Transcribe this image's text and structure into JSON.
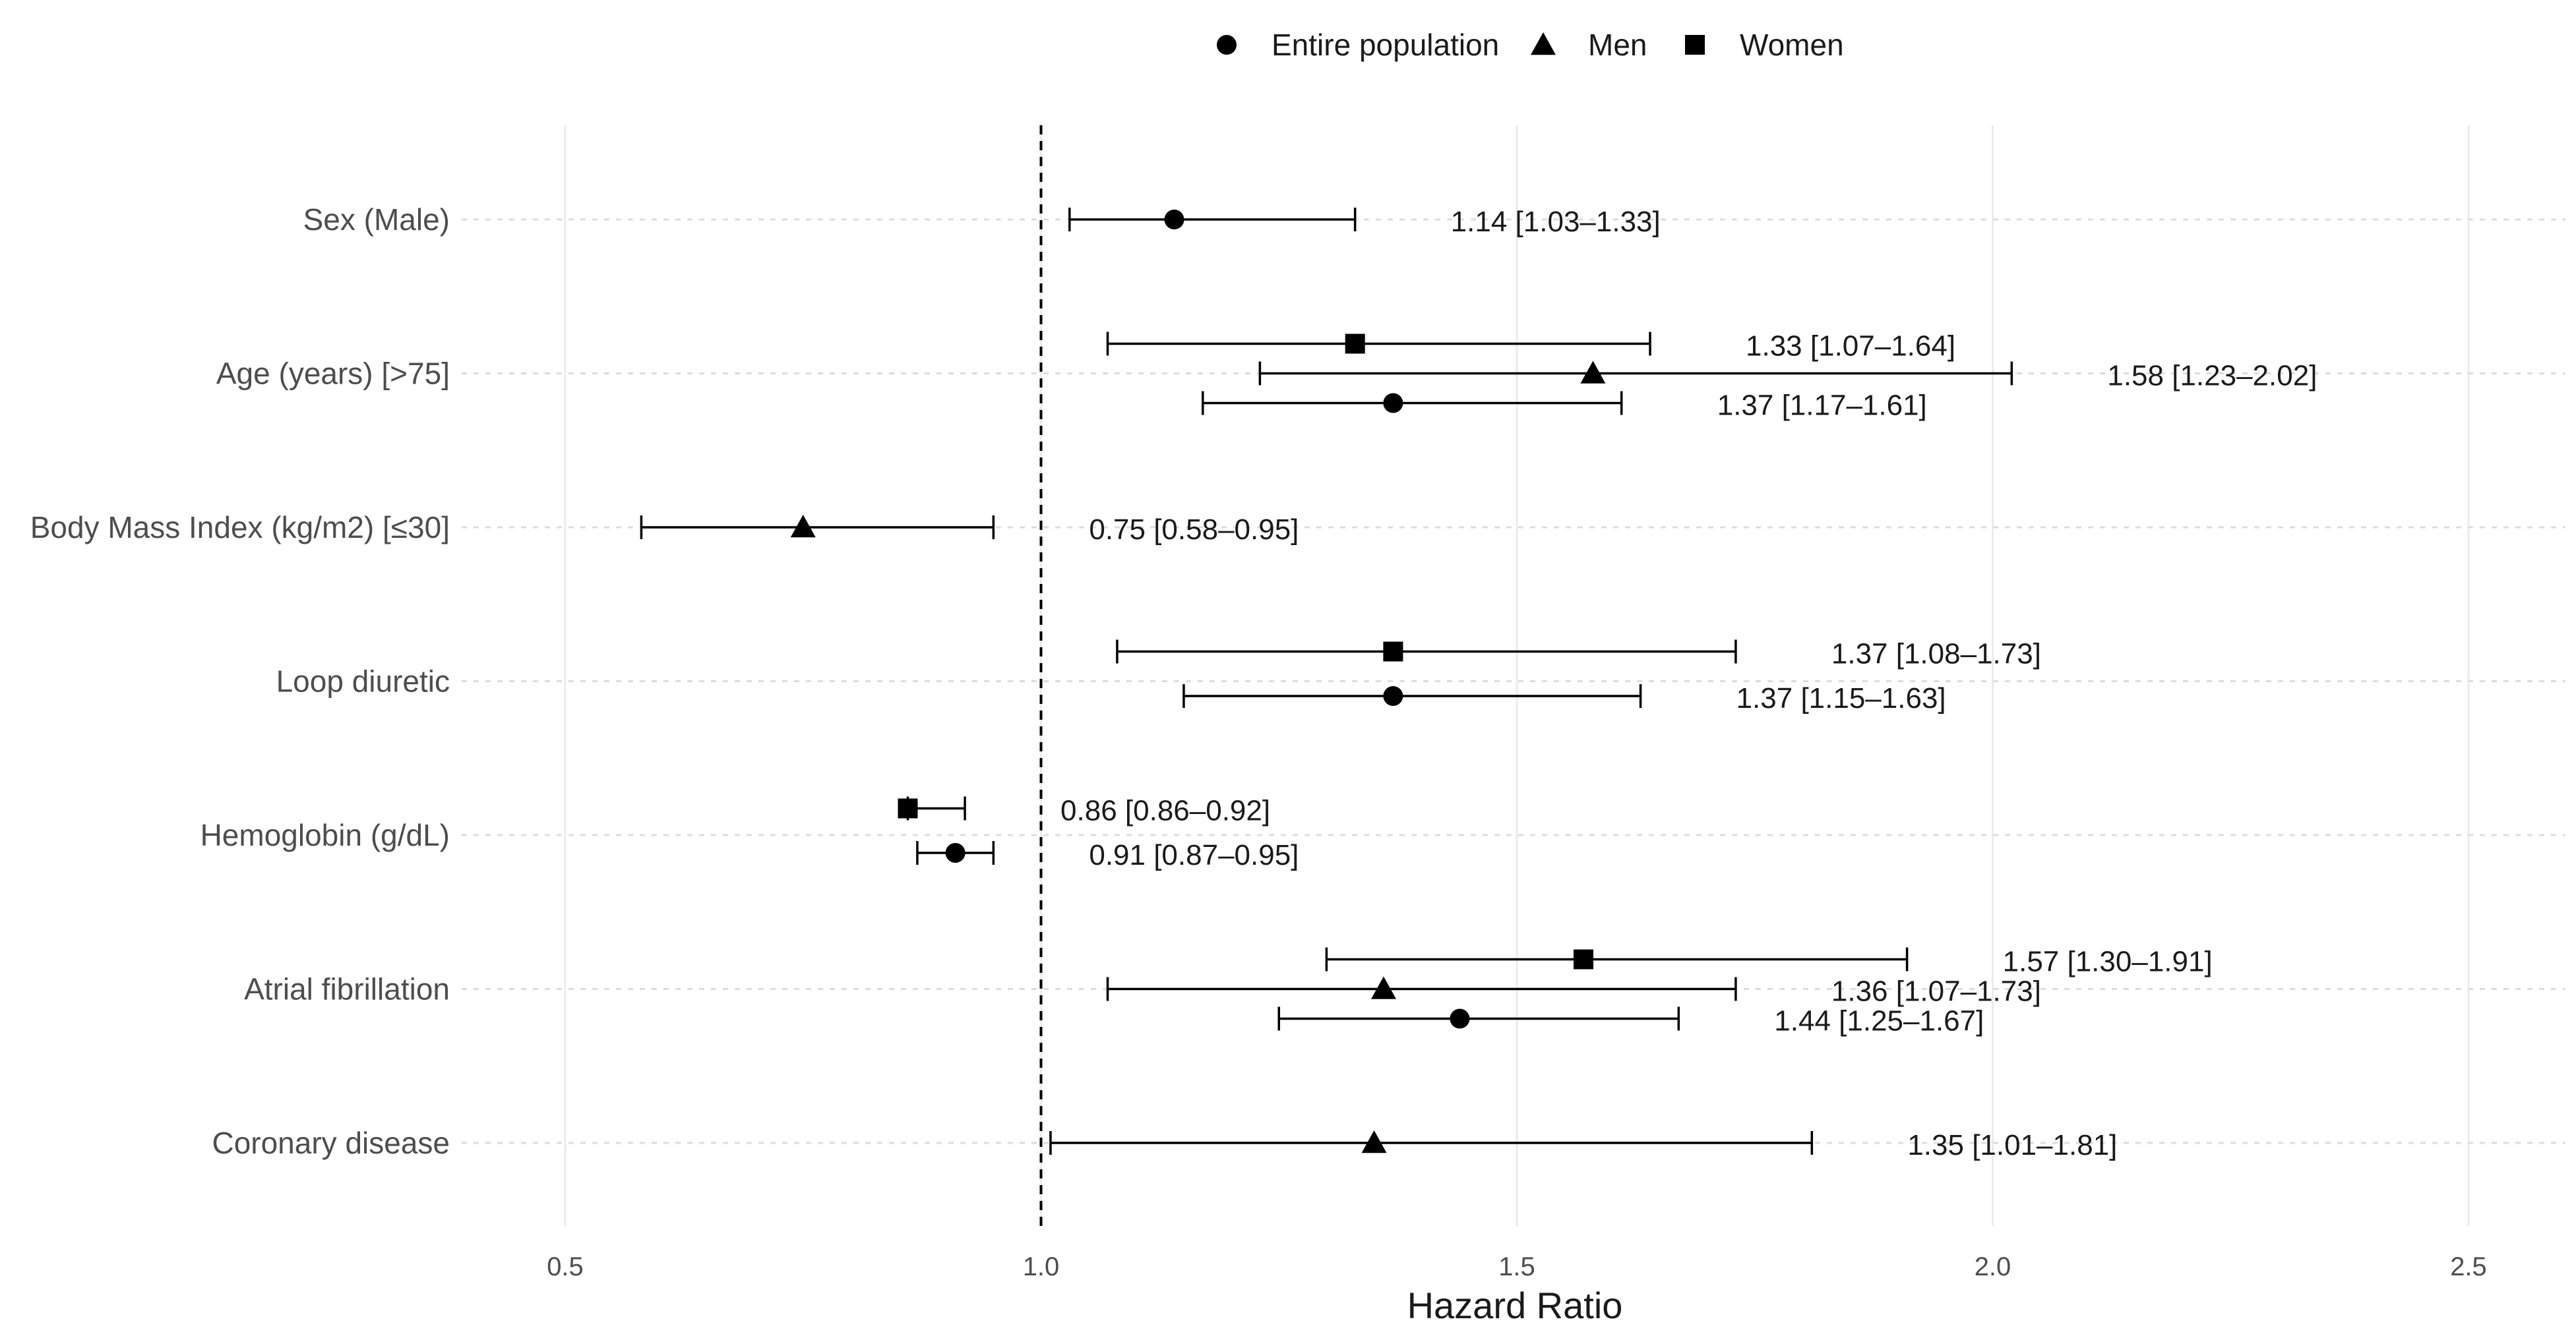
{
  "chart_data": {
    "type": "forest",
    "xlabel": "Hazard Ratio",
    "ylabel": "",
    "xlim": [
      0.3,
      2.6
    ],
    "x_ticks": [
      0.5,
      1.0,
      1.5,
      2.0,
      2.5
    ],
    "x_tick_labels": [
      "0.5",
      "1.0",
      "1.5",
      "2.0",
      "2.5"
    ],
    "reference_line": 1.0,
    "legend": {
      "position": "top",
      "items": [
        {
          "name": "Entire population",
          "shape": "circle"
        },
        {
          "name": "Men",
          "shape": "triangle"
        },
        {
          "name": "Women",
          "shape": "square"
        }
      ]
    },
    "categories": [
      "Sex (Male)",
      "Age (years) [>75]",
      "Body Mass Index (kg/m2) [≤30]",
      "Loop diuretic",
      "Hemoglobin (g/dL)",
      "Atrial fibrillation",
      "Coronary disease"
    ],
    "points": [
      {
        "category": "Sex (Male)",
        "series": "Entire population",
        "hr": 1.14,
        "lo": 1.03,
        "hi": 1.33,
        "offset": 0,
        "label": "1.14 [1.03–1.33]"
      },
      {
        "category": "Age (years) [>75]",
        "series": "Women",
        "hr": 1.33,
        "lo": 1.07,
        "hi": 1.64,
        "offset": -1,
        "label": "1.33 [1.07–1.64]"
      },
      {
        "category": "Age (years) [>75]",
        "series": "Men",
        "hr": 1.58,
        "lo": 1.23,
        "hi": 2.02,
        "offset": 0,
        "label": "1.58 [1.23–2.02]"
      },
      {
        "category": "Age (years) [>75]",
        "series": "Entire population",
        "hr": 1.37,
        "lo": 1.17,
        "hi": 1.61,
        "offset": 1,
        "label": "1.37 [1.17–1.61]"
      },
      {
        "category": "Body Mass Index (kg/m2) [≤30]",
        "series": "Men",
        "hr": 0.75,
        "lo": 0.58,
        "hi": 0.95,
        "offset": 0,
        "label": "0.75 [0.58–0.95]"
      },
      {
        "category": "Loop diuretic",
        "series": "Women",
        "hr": 1.37,
        "lo": 1.08,
        "hi": 1.73,
        "offset": -1,
        "label": "1.37 [1.08–1.73]"
      },
      {
        "category": "Loop diuretic",
        "series": "Entire population",
        "hr": 1.37,
        "lo": 1.15,
        "hi": 1.63,
        "offset": 0.5,
        "label": "1.37 [1.15–1.63]"
      },
      {
        "category": "Hemoglobin (g/dL)",
        "series": "Women",
        "hr": 0.86,
        "lo": 0.86,
        "hi": 0.92,
        "offset": -0.9,
        "label": "0.86 [0.86–0.92]"
      },
      {
        "category": "Hemoglobin (g/dL)",
        "series": "Entire population",
        "hr": 0.91,
        "lo": 0.87,
        "hi": 0.95,
        "offset": 0.6,
        "label": "0.91 [0.87–0.95]"
      },
      {
        "category": "Atrial fibrillation",
        "series": "Women",
        "hr": 1.57,
        "lo": 1.3,
        "hi": 1.91,
        "offset": -1,
        "label": "1.57 [1.30–1.91]"
      },
      {
        "category": "Atrial fibrillation",
        "series": "Men",
        "hr": 1.36,
        "lo": 1.07,
        "hi": 1.73,
        "offset": 0,
        "label": "1.36 [1.07–1.73]"
      },
      {
        "category": "Atrial fibrillation",
        "series": "Entire population",
        "hr": 1.44,
        "lo": 1.25,
        "hi": 1.67,
        "offset": 1,
        "label": "1.44 [1.25–1.67]"
      },
      {
        "category": "Coronary disease",
        "series": "Men",
        "hr": 1.35,
        "lo": 1.01,
        "hi": 1.81,
        "offset": 0,
        "label": "1.35 [1.01–1.81]"
      }
    ],
    "grid": true
  }
}
